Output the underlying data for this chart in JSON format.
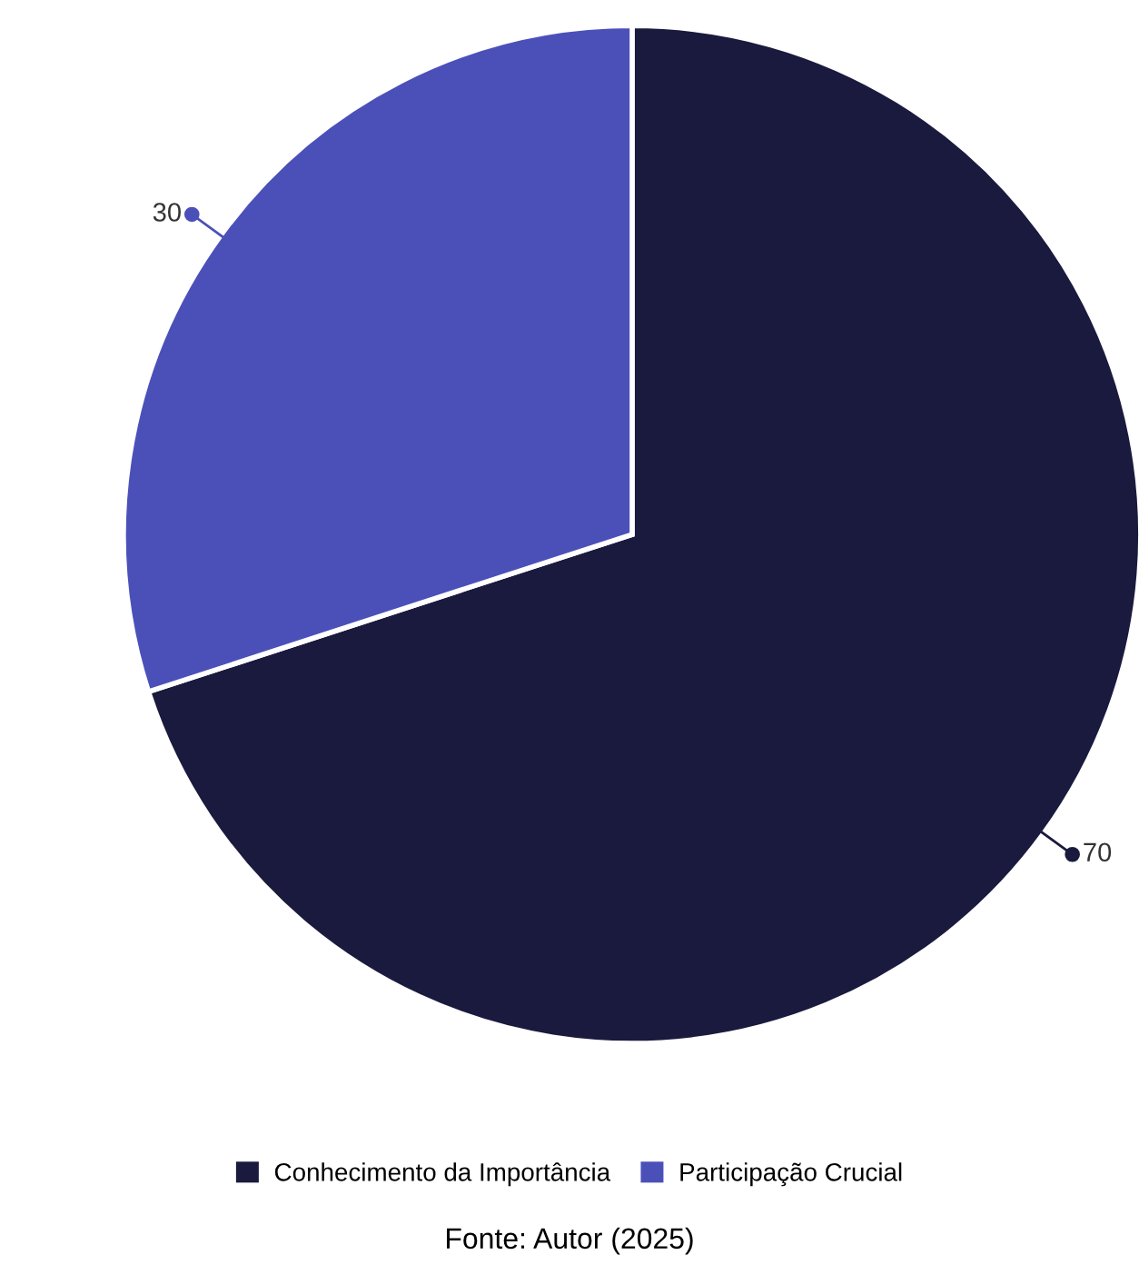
{
  "chart_data": {
    "type": "pie",
    "categories": [
      "Conhecimento da Importância",
      "Participação Crucial"
    ],
    "values": [
      70,
      30
    ],
    "colors": [
      "#1a1a3e",
      "#4b50b9"
    ],
    "data_labels": true,
    "legend": "bottom",
    "annotations": [
      "Fonte: Autor (2025)"
    ]
  }
}
